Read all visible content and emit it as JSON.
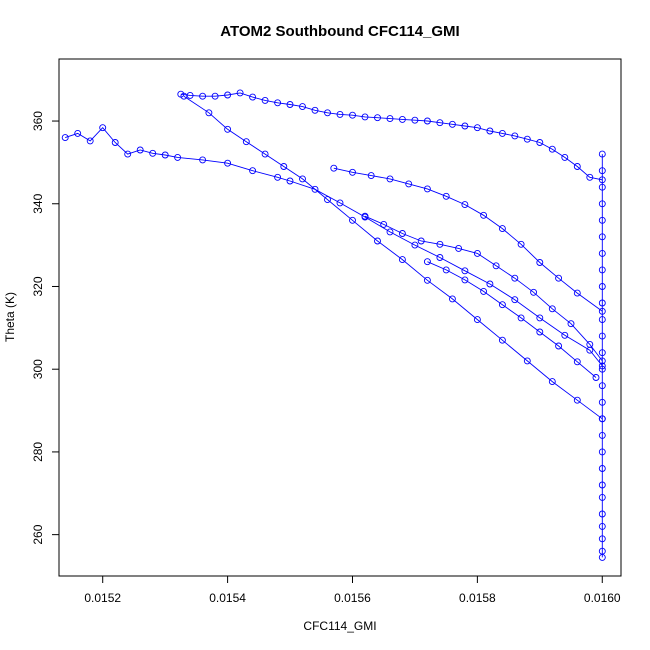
{
  "chart_data": {
    "type": "scatter",
    "title": "ATOM2 Southbound CFC114_GMI",
    "xlabel": "CFC114_GMI",
    "ylabel": "Theta (K)",
    "xlim": [
      0.01513,
      0.01603
    ],
    "ylim": [
      250,
      375
    ],
    "x_ticks": [
      0.0152,
      0.0154,
      0.0156,
      0.0158,
      0.016
    ],
    "x_tick_labels": [
      "0.0152",
      "0.0154",
      "0.0156",
      "0.0158",
      "0.0160"
    ],
    "y_ticks": [
      260,
      280,
      300,
      320,
      340,
      360
    ],
    "y_tick_labels": [
      "260",
      "280",
      "300",
      "320",
      "340",
      "360"
    ],
    "grid": false,
    "legend": "none",
    "marker": "open-circle",
    "color": "#0000ff",
    "series": [
      {
        "x": [
          0.015325,
          0.01534,
          0.01536,
          0.01538,
          0.0154,
          0.01542,
          0.01544,
          0.01546,
          0.01548,
          0.0155,
          0.01552,
          0.01554,
          0.01556,
          0.01558,
          0.0156,
          0.01562,
          0.01564,
          0.01566,
          0.01568,
          0.0157,
          0.01572,
          0.01574,
          0.01576,
          0.01578,
          0.0158,
          0.01582,
          0.01584,
          0.01586,
          0.01588,
          0.0159,
          0.01592,
          0.01594,
          0.01596,
          0.01598,
          0.016
        ],
        "y": [
          366.5,
          366.2,
          366.0,
          366.0,
          366.3,
          366.8,
          365.8,
          365.0,
          364.4,
          364.0,
          363.5,
          362.6,
          362.0,
          361.6,
          361.4,
          361.0,
          360.8,
          360.6,
          360.4,
          360.2,
          360.0,
          359.6,
          359.2,
          358.8,
          358.4,
          357.6,
          357.0,
          356.4,
          355.6,
          354.8,
          353.2,
          351.2,
          349.0,
          346.4,
          345.8
        ]
      },
      {
        "x": [
          0.01514,
          0.01516,
          0.01518,
          0.0152,
          0.01522,
          0.01524,
          0.01526,
          0.01528,
          0.0153,
          0.01532,
          0.01536,
          0.0154,
          0.01544,
          0.01548,
          0.0155,
          0.01554,
          0.01558,
          0.01562,
          0.01566,
          0.0157,
          0.01574,
          0.01578,
          0.01582,
          0.01586,
          0.0159,
          0.01594,
          0.01598,
          0.016
        ],
        "y": [
          356.0,
          357.0,
          355.2,
          358.4,
          354.8,
          352.0,
          353.0,
          352.2,
          351.8,
          351.2,
          350.6,
          349.8,
          348.0,
          346.4,
          345.5,
          343.5,
          340.2,
          336.8,
          333.2,
          330.0,
          327.0,
          323.8,
          320.6,
          316.8,
          312.4,
          308.2,
          304.6,
          300.8
        ]
      },
      {
        "x": [
          0.01533,
          0.01537,
          0.0154,
          0.01543,
          0.01546,
          0.01549,
          0.01552,
          0.01556,
          0.0156,
          0.01564,
          0.01568,
          0.01572,
          0.01576,
          0.0158,
          0.01584,
          0.01588,
          0.01592,
          0.01596,
          0.016
        ],
        "y": [
          366.0,
          362.0,
          358.0,
          355.0,
          352.0,
          349.0,
          346.0,
          341.0,
          336.0,
          331.0,
          326.5,
          321.5,
          317.0,
          312.0,
          307.0,
          302.0,
          297.0,
          292.5,
          288.0
        ]
      },
      {
        "x": [
          0.01557,
          0.0156,
          0.01563,
          0.01566,
          0.01569,
          0.01572,
          0.01575,
          0.01578,
          0.01581,
          0.01584,
          0.01587,
          0.0159,
          0.01593,
          0.01596,
          0.016
        ],
        "y": [
          348.6,
          347.6,
          346.8,
          346.0,
          344.8,
          343.6,
          341.8,
          339.8,
          337.2,
          334.0,
          330.2,
          325.8,
          322.0,
          318.4,
          314.0
        ]
      },
      {
        "x": [
          0.01562,
          0.01565,
          0.01568,
          0.01571,
          0.01574,
          0.01577,
          0.0158,
          0.01583,
          0.01586,
          0.01589,
          0.01592,
          0.01595,
          0.01598,
          0.016
        ],
        "y": [
          337.0,
          335.0,
          332.8,
          331.0,
          330.2,
          329.2,
          328.0,
          325.0,
          322.0,
          318.6,
          314.6,
          311.0,
          306.0,
          302.0
        ]
      },
      {
        "x": [
          0.01572,
          0.01575,
          0.01578,
          0.01581,
          0.01584,
          0.01587,
          0.0159,
          0.01593,
          0.01596,
          0.01599
        ],
        "y": [
          326.0,
          324.0,
          321.6,
          318.8,
          315.6,
          312.4,
          309.0,
          305.6,
          301.8,
          298.0
        ]
      },
      {
        "x": [
          0.016,
          0.016,
          0.016,
          0.016,
          0.016,
          0.016,
          0.016,
          0.016,
          0.016,
          0.016,
          0.016,
          0.016,
          0.016,
          0.016,
          0.016,
          0.016,
          0.016,
          0.016,
          0.016,
          0.016,
          0.016,
          0.016,
          0.016,
          0.016,
          0.016,
          0.016,
          0.016
        ],
        "y": [
          352,
          348,
          344,
          340,
          336,
          332,
          328,
          324,
          320,
          316,
          312,
          308,
          304,
          300,
          296,
          292,
          288,
          284,
          280,
          276,
          272,
          269,
          265,
          262,
          259,
          256,
          254.5
        ]
      }
    ]
  }
}
